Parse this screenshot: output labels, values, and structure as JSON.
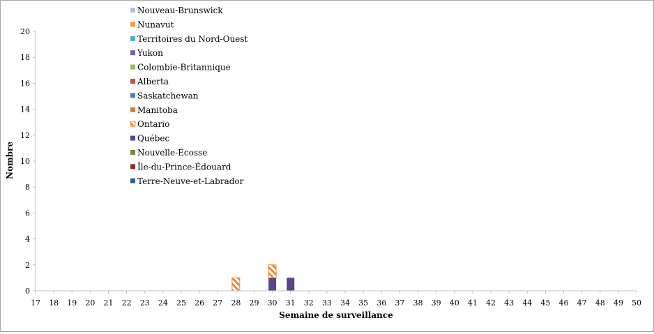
{
  "chart_data": {
    "type": "bar",
    "stacked": true,
    "xlabel": "Semaine de surveillance",
    "ylabel": "Nombre",
    "ylim": [
      0,
      20
    ],
    "ytick_step": 2,
    "categories": [
      "17",
      "18",
      "19",
      "20",
      "21",
      "22",
      "23",
      "24",
      "25",
      "26",
      "27",
      "28",
      "29",
      "30",
      "31",
      "32",
      "33",
      "34",
      "35",
      "36",
      "37",
      "38",
      "39",
      "40",
      "41",
      "42",
      "43",
      "44",
      "45",
      "46",
      "47",
      "48",
      "49",
      "50"
    ],
    "legend_position": "top-left",
    "legend_order": [
      "Nouveau-Brunswick",
      "Nunavut",
      "Territoires du Nord-Ouest",
      "Yukon",
      "Colombie-Britannique",
      "Alberta",
      "Saskatchewan",
      "Manitoba",
      "Ontario",
      "Québec",
      "Nouvelle-Écosse",
      "Île-du-Prince-Édouard",
      "Terre-Neuve-et-Labrador"
    ],
    "series": [
      {
        "name": "Terre-Neuve-et-Labrador",
        "color": "#2e5f8e",
        "pattern": "solid",
        "values": [
          0,
          0,
          0,
          0,
          0,
          0,
          0,
          0,
          0,
          0,
          0,
          0,
          0,
          0,
          0,
          0,
          0,
          0,
          0,
          0,
          0,
          0,
          0,
          0,
          0,
          0,
          0,
          0,
          0,
          0,
          0,
          0,
          0,
          0
        ]
      },
      {
        "name": "Île-du-Prince-Édouard",
        "color": "#8c2a27",
        "pattern": "solid",
        "values": [
          0,
          0,
          0,
          0,
          0,
          0,
          0,
          0,
          0,
          0,
          0,
          0,
          0,
          0,
          0,
          0,
          0,
          0,
          0,
          0,
          0,
          0,
          0,
          0,
          0,
          0,
          0,
          0,
          0,
          0,
          0,
          0,
          0,
          0
        ]
      },
      {
        "name": "Nouvelle-Écosse",
        "color": "#6f8c3a",
        "pattern": "solid",
        "values": [
          0,
          0,
          0,
          0,
          0,
          0,
          0,
          0,
          0,
          0,
          0,
          0,
          0,
          0,
          0,
          0,
          0,
          0,
          0,
          0,
          0,
          0,
          0,
          0,
          0,
          0,
          0,
          0,
          0,
          0,
          0,
          0,
          0,
          0
        ]
      },
      {
        "name": "Québec",
        "color": "#5b4585",
        "pattern": "solid",
        "values": [
          0,
          0,
          0,
          0,
          0,
          0,
          0,
          0,
          0,
          0,
          0,
          0,
          0,
          1,
          1,
          0,
          0,
          0,
          0,
          0,
          0,
          0,
          0,
          0,
          0,
          0,
          0,
          0,
          0,
          0,
          0,
          0,
          0,
          0
        ]
      },
      {
        "name": "Ontario",
        "color": "#f08a30",
        "pattern": "hatch",
        "values": [
          0,
          0,
          0,
          0,
          0,
          0,
          0,
          0,
          0,
          0,
          0,
          1,
          0,
          1,
          0,
          0,
          0,
          0,
          0,
          0,
          0,
          0,
          0,
          0,
          0,
          0,
          0,
          0,
          0,
          0,
          0,
          0,
          0,
          0
        ]
      },
      {
        "name": "Manitoba",
        "color": "#d67a2b",
        "pattern": "solid",
        "values": [
          0,
          0,
          0,
          0,
          0,
          0,
          0,
          0,
          0,
          0,
          0,
          0,
          0,
          0,
          0,
          0,
          0,
          0,
          0,
          0,
          0,
          0,
          0,
          0,
          0,
          0,
          0,
          0,
          0,
          0,
          0,
          0,
          0,
          0
        ]
      },
      {
        "name": "Saskatchewan",
        "color": "#4a7ebb",
        "pattern": "solid",
        "values": [
          0,
          0,
          0,
          0,
          0,
          0,
          0,
          0,
          0,
          0,
          0,
          0,
          0,
          0,
          0,
          0,
          0,
          0,
          0,
          0,
          0,
          0,
          0,
          0,
          0,
          0,
          0,
          0,
          0,
          0,
          0,
          0,
          0,
          0
        ]
      },
      {
        "name": "Alberta",
        "color": "#c0504d",
        "pattern": "solid",
        "values": [
          0,
          0,
          0,
          0,
          0,
          0,
          0,
          0,
          0,
          0,
          0,
          0,
          0,
          0,
          0,
          0,
          0,
          0,
          0,
          0,
          0,
          0,
          0,
          0,
          0,
          0,
          0,
          0,
          0,
          0,
          0,
          0,
          0,
          0
        ]
      },
      {
        "name": "Colombie-Britannique",
        "color": "#9bbb59",
        "pattern": "solid",
        "values": [
          0,
          0,
          0,
          0,
          0,
          0,
          0,
          0,
          0,
          0,
          0,
          0,
          0,
          0,
          0,
          0,
          0,
          0,
          0,
          0,
          0,
          0,
          0,
          0,
          0,
          0,
          0,
          0,
          0,
          0,
          0,
          0,
          0,
          0
        ]
      },
      {
        "name": "Yukon",
        "color": "#7a5fa3",
        "pattern": "solid",
        "values": [
          0,
          0,
          0,
          0,
          0,
          0,
          0,
          0,
          0,
          0,
          0,
          0,
          0,
          0,
          0,
          0,
          0,
          0,
          0,
          0,
          0,
          0,
          0,
          0,
          0,
          0,
          0,
          0,
          0,
          0,
          0,
          0,
          0,
          0
        ]
      },
      {
        "name": "Territoires du Nord-Ouest",
        "color": "#4bacc6",
        "pattern": "solid",
        "values": [
          0,
          0,
          0,
          0,
          0,
          0,
          0,
          0,
          0,
          0,
          0,
          0,
          0,
          0,
          0,
          0,
          0,
          0,
          0,
          0,
          0,
          0,
          0,
          0,
          0,
          0,
          0,
          0,
          0,
          0,
          0,
          0,
          0,
          0
        ]
      },
      {
        "name": "Nunavut",
        "color": "#f79646",
        "pattern": "solid",
        "values": [
          0,
          0,
          0,
          0,
          0,
          0,
          0,
          0,
          0,
          0,
          0,
          0,
          0,
          0,
          0,
          0,
          0,
          0,
          0,
          0,
          0,
          0,
          0,
          0,
          0,
          0,
          0,
          0,
          0,
          0,
          0,
          0,
          0,
          0
        ]
      },
      {
        "name": "Nouveau-Brunswick",
        "color": "#a9bcdf",
        "pattern": "solid",
        "values": [
          0,
          0,
          0,
          0,
          0,
          0,
          0,
          0,
          0,
          0,
          0,
          0,
          0,
          0,
          0,
          0,
          0,
          0,
          0,
          0,
          0,
          0,
          0,
          0,
          0,
          0,
          0,
          0,
          0,
          0,
          0,
          0,
          0,
          0
        ]
      }
    ]
  }
}
